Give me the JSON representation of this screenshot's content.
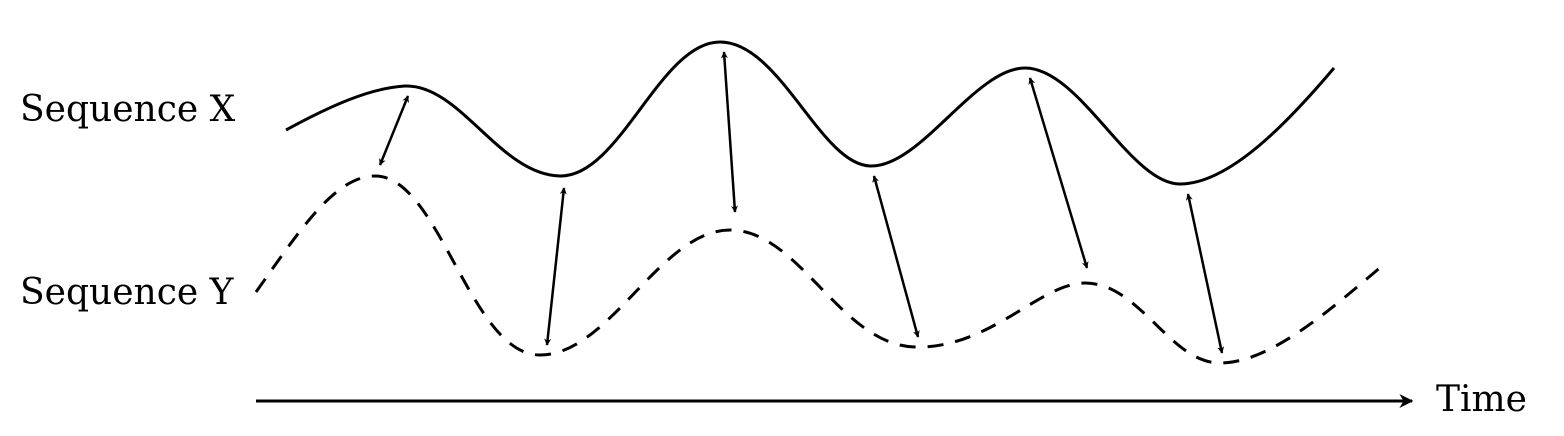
{
  "sequences": {
    "x_label": "Sequence X",
    "y_label": "Sequence Y"
  },
  "axis": {
    "time_label": "Time"
  },
  "colors": {
    "ink": "#000000",
    "background": "#ffffff"
  }
}
